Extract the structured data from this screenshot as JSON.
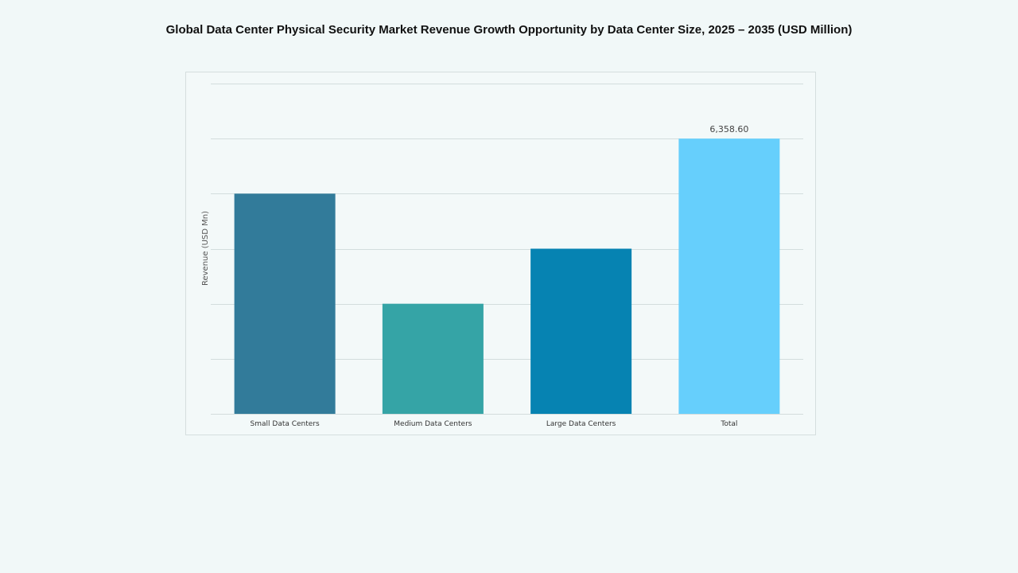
{
  "chart_data": {
    "type": "bar",
    "title": "Global Data Center Physical Security Market Revenue Growth Opportunity by Data Center Size, 2025 – 2035 (USD Million)",
    "xlabel": "",
    "ylabel": "Revenue (USD Mn)",
    "categories": [
      "Small Data Centers",
      "Medium Data Centers",
      "Large Data Centers",
      "Total"
    ],
    "values": [
      5086.88,
      2543.44,
      3815.16,
      6358.6
    ],
    "data_labels": [
      "",
      "",
      "",
      "6,358.60"
    ],
    "colors": [
      "#327b9a",
      "#35a4a6",
      "#0683b2",
      "#66cffc"
    ],
    "ylim": [
      0,
      7630.32
    ],
    "ytick_step": 1271.72,
    "y_tick_labels_shown": false,
    "grid": true,
    "legend": "none"
  }
}
